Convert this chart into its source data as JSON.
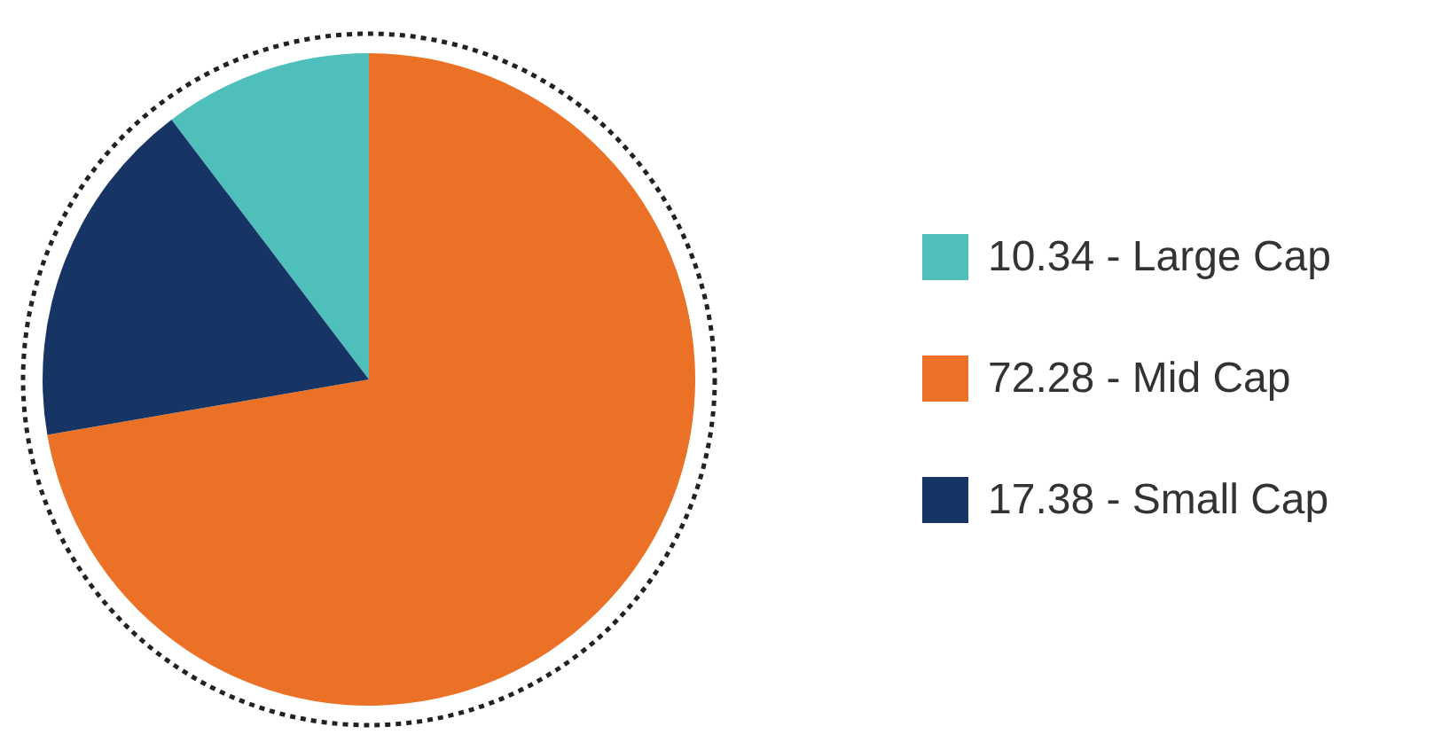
{
  "chart_data": {
    "type": "pie",
    "categories": [
      "10.34 - Large Cap",
      "72.28 - Mid Cap",
      "17.38 - Small Cap"
    ],
    "values": [
      10.34,
      72.28,
      17.38
    ],
    "colors": [
      "#4fbfbb",
      "#ea7125",
      "#163564"
    ],
    "legend": "right"
  }
}
